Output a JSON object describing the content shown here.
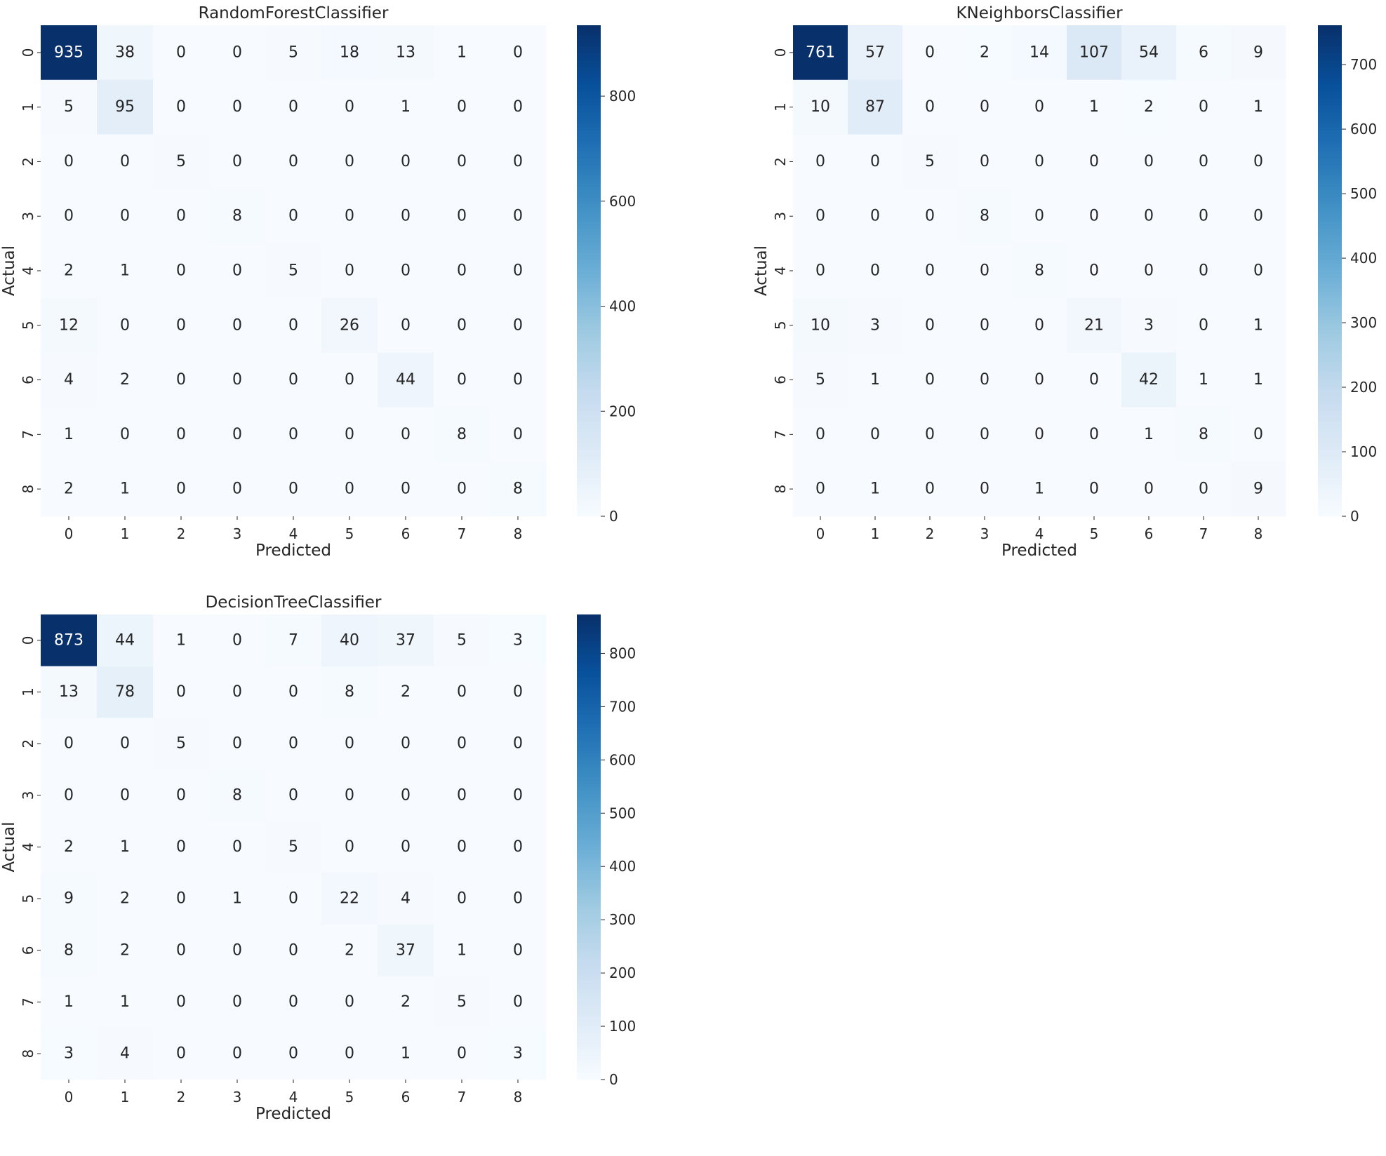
{
  "figure": {
    "background": "#ffffff",
    "colormap": "Blues",
    "colormap_stops": [
      "#f7fbff",
      "#deebf7",
      "#c6dbef",
      "#9ecae1",
      "#6baed6",
      "#4292c6",
      "#2171b5",
      "#08519c",
      "#08306b"
    ]
  },
  "chart_data": [
    {
      "type": "heatmap",
      "title": "RandomForestClassifier",
      "xlabel": "Predicted",
      "ylabel": "Actual",
      "x_tick_labels": [
        "0",
        "1",
        "2",
        "3",
        "4",
        "5",
        "6",
        "7",
        "8"
      ],
      "y_tick_labels": [
        "0",
        "1",
        "2",
        "3",
        "4",
        "5",
        "6",
        "7",
        "8"
      ],
      "values": [
        [
          935,
          38,
          0,
          0,
          5,
          18,
          13,
          1,
          0
        ],
        [
          5,
          95,
          0,
          0,
          0,
          0,
          1,
          0,
          0
        ],
        [
          0,
          0,
          5,
          0,
          0,
          0,
          0,
          0,
          0
        ],
        [
          0,
          0,
          0,
          8,
          0,
          0,
          0,
          0,
          0
        ],
        [
          2,
          1,
          0,
          0,
          5,
          0,
          0,
          0,
          0
        ],
        [
          12,
          0,
          0,
          0,
          0,
          26,
          0,
          0,
          0
        ],
        [
          4,
          2,
          0,
          0,
          0,
          0,
          44,
          0,
          0
        ],
        [
          1,
          0,
          0,
          0,
          0,
          0,
          0,
          8,
          0
        ],
        [
          2,
          1,
          0,
          0,
          0,
          0,
          0,
          0,
          8
        ]
      ],
      "colorbar": {
        "range": [
          0,
          935
        ],
        "ticks": [
          0,
          200,
          400,
          600,
          800
        ]
      },
      "annotated": true
    },
    {
      "type": "heatmap",
      "title": "KNeighborsClassifier",
      "xlabel": "Predicted",
      "ylabel": "Actual",
      "x_tick_labels": [
        "0",
        "1",
        "2",
        "3",
        "4",
        "5",
        "6",
        "7",
        "8"
      ],
      "y_tick_labels": [
        "0",
        "1",
        "2",
        "3",
        "4",
        "5",
        "6",
        "7",
        "8"
      ],
      "values": [
        [
          761,
          57,
          0,
          2,
          14,
          107,
          54,
          6,
          9
        ],
        [
          10,
          87,
          0,
          0,
          0,
          1,
          2,
          0,
          1
        ],
        [
          0,
          0,
          5,
          0,
          0,
          0,
          0,
          0,
          0
        ],
        [
          0,
          0,
          0,
          8,
          0,
          0,
          0,
          0,
          0
        ],
        [
          0,
          0,
          0,
          0,
          8,
          0,
          0,
          0,
          0
        ],
        [
          10,
          3,
          0,
          0,
          0,
          21,
          3,
          0,
          1
        ],
        [
          5,
          1,
          0,
          0,
          0,
          0,
          42,
          1,
          1
        ],
        [
          0,
          0,
          0,
          0,
          0,
          0,
          1,
          8,
          0
        ],
        [
          0,
          1,
          0,
          0,
          1,
          0,
          0,
          0,
          9
        ]
      ],
      "colorbar": {
        "range": [
          0,
          761
        ],
        "ticks": [
          0,
          100,
          200,
          300,
          400,
          500,
          600,
          700
        ]
      },
      "annotated": true
    },
    {
      "type": "heatmap",
      "title": "DecisionTreeClassifier",
      "xlabel": "Predicted",
      "ylabel": "Actual",
      "x_tick_labels": [
        "0",
        "1",
        "2",
        "3",
        "4",
        "5",
        "6",
        "7",
        "8"
      ],
      "y_tick_labels": [
        "0",
        "1",
        "2",
        "3",
        "4",
        "5",
        "6",
        "7",
        "8"
      ],
      "values": [
        [
          873,
          44,
          1,
          0,
          7,
          40,
          37,
          5,
          3
        ],
        [
          13,
          78,
          0,
          0,
          0,
          8,
          2,
          0,
          0
        ],
        [
          0,
          0,
          5,
          0,
          0,
          0,
          0,
          0,
          0
        ],
        [
          0,
          0,
          0,
          8,
          0,
          0,
          0,
          0,
          0
        ],
        [
          2,
          1,
          0,
          0,
          5,
          0,
          0,
          0,
          0
        ],
        [
          9,
          2,
          0,
          1,
          0,
          22,
          4,
          0,
          0
        ],
        [
          8,
          2,
          0,
          0,
          0,
          2,
          37,
          1,
          0
        ],
        [
          1,
          1,
          0,
          0,
          0,
          0,
          2,
          5,
          0
        ],
        [
          3,
          4,
          0,
          0,
          0,
          0,
          1,
          0,
          3
        ]
      ],
      "colorbar": {
        "range": [
          0,
          873
        ],
        "ticks": [
          0,
          100,
          200,
          300,
          400,
          500,
          600,
          700,
          800
        ]
      },
      "annotated": true
    }
  ]
}
